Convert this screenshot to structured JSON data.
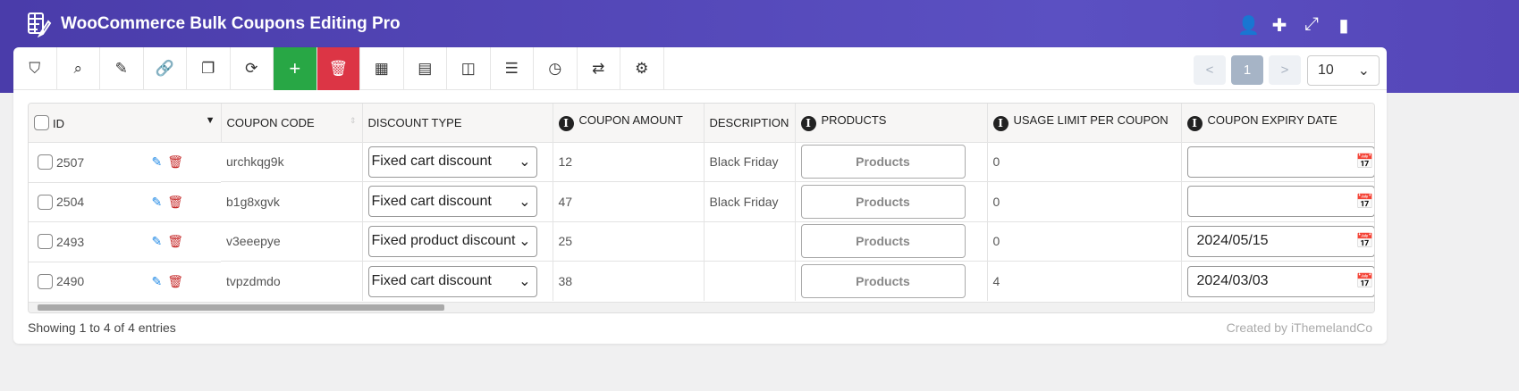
{
  "app": {
    "title": "WooCommerce Bulk Coupons Editing Pro",
    "header_icons": [
      "user-check-icon",
      "puzzle-icon",
      "fullscreen-icon",
      "book-icon"
    ]
  },
  "toolbar": {
    "buttons": [
      {
        "name": "filter",
        "glyph": "⛉"
      },
      {
        "name": "search",
        "glyph": "⌕"
      },
      {
        "name": "edit",
        "glyph": "✎"
      },
      {
        "name": "link",
        "glyph": "🔗"
      },
      {
        "name": "duplicate",
        "glyph": "❐"
      },
      {
        "name": "reload",
        "glyph": "⟳"
      },
      {
        "name": "add",
        "glyph": "+"
      },
      {
        "name": "delete",
        "glyph": "🗑"
      },
      {
        "name": "column-profile",
        "glyph": "▦"
      },
      {
        "name": "column-manager",
        "glyph": "▤"
      },
      {
        "name": "split-view",
        "glyph": "◫"
      },
      {
        "name": "list",
        "glyph": "☰"
      },
      {
        "name": "history",
        "glyph": "◷"
      },
      {
        "name": "sync",
        "glyph": "⇄"
      },
      {
        "name": "settings",
        "glyph": "⚙"
      }
    ]
  },
  "pagination": {
    "prev": "<",
    "current": "1",
    "next": ">",
    "per_page": "10"
  },
  "table": {
    "columns": [
      "ID",
      "COUPON CODE",
      "DISCOUNT TYPE",
      "COUPON AMOUNT",
      "DESCRIPTION",
      "PRODUCTS",
      "USAGE LIMIT PER COUPON",
      "COUPON EXPIRY DATE"
    ],
    "products_label": "Products",
    "rows": [
      {
        "id": "2507",
        "code": "urchkqg9k",
        "discount_type": "Fixed cart discount",
        "amount": "12",
        "description": "Black Friday",
        "usage_limit": "0",
        "expiry": ""
      },
      {
        "id": "2504",
        "code": "b1g8xgvk",
        "discount_type": "Fixed cart discount",
        "amount": "47",
        "description": "Black Friday",
        "usage_limit": "0",
        "expiry": ""
      },
      {
        "id": "2493",
        "code": "v3eeepye",
        "discount_type": "Fixed product discount",
        "amount": "25",
        "description": "",
        "usage_limit": "0",
        "expiry": "2024/05/15"
      },
      {
        "id": "2490",
        "code": "tvpzdmdo",
        "discount_type": "Fixed cart discount",
        "amount": "38",
        "description": "",
        "usage_limit": "4",
        "expiry": "2024/03/03"
      }
    ]
  },
  "footer": {
    "showing": "Showing 1 to 4 of 4 entries",
    "credit": "Created by iThemelandCo"
  },
  "colors": {
    "header": "#4a3caa",
    "add": "#28a745",
    "delete": "#dc3545",
    "edit_icon": "#1e88e5",
    "trash_icon": "#c62828"
  }
}
